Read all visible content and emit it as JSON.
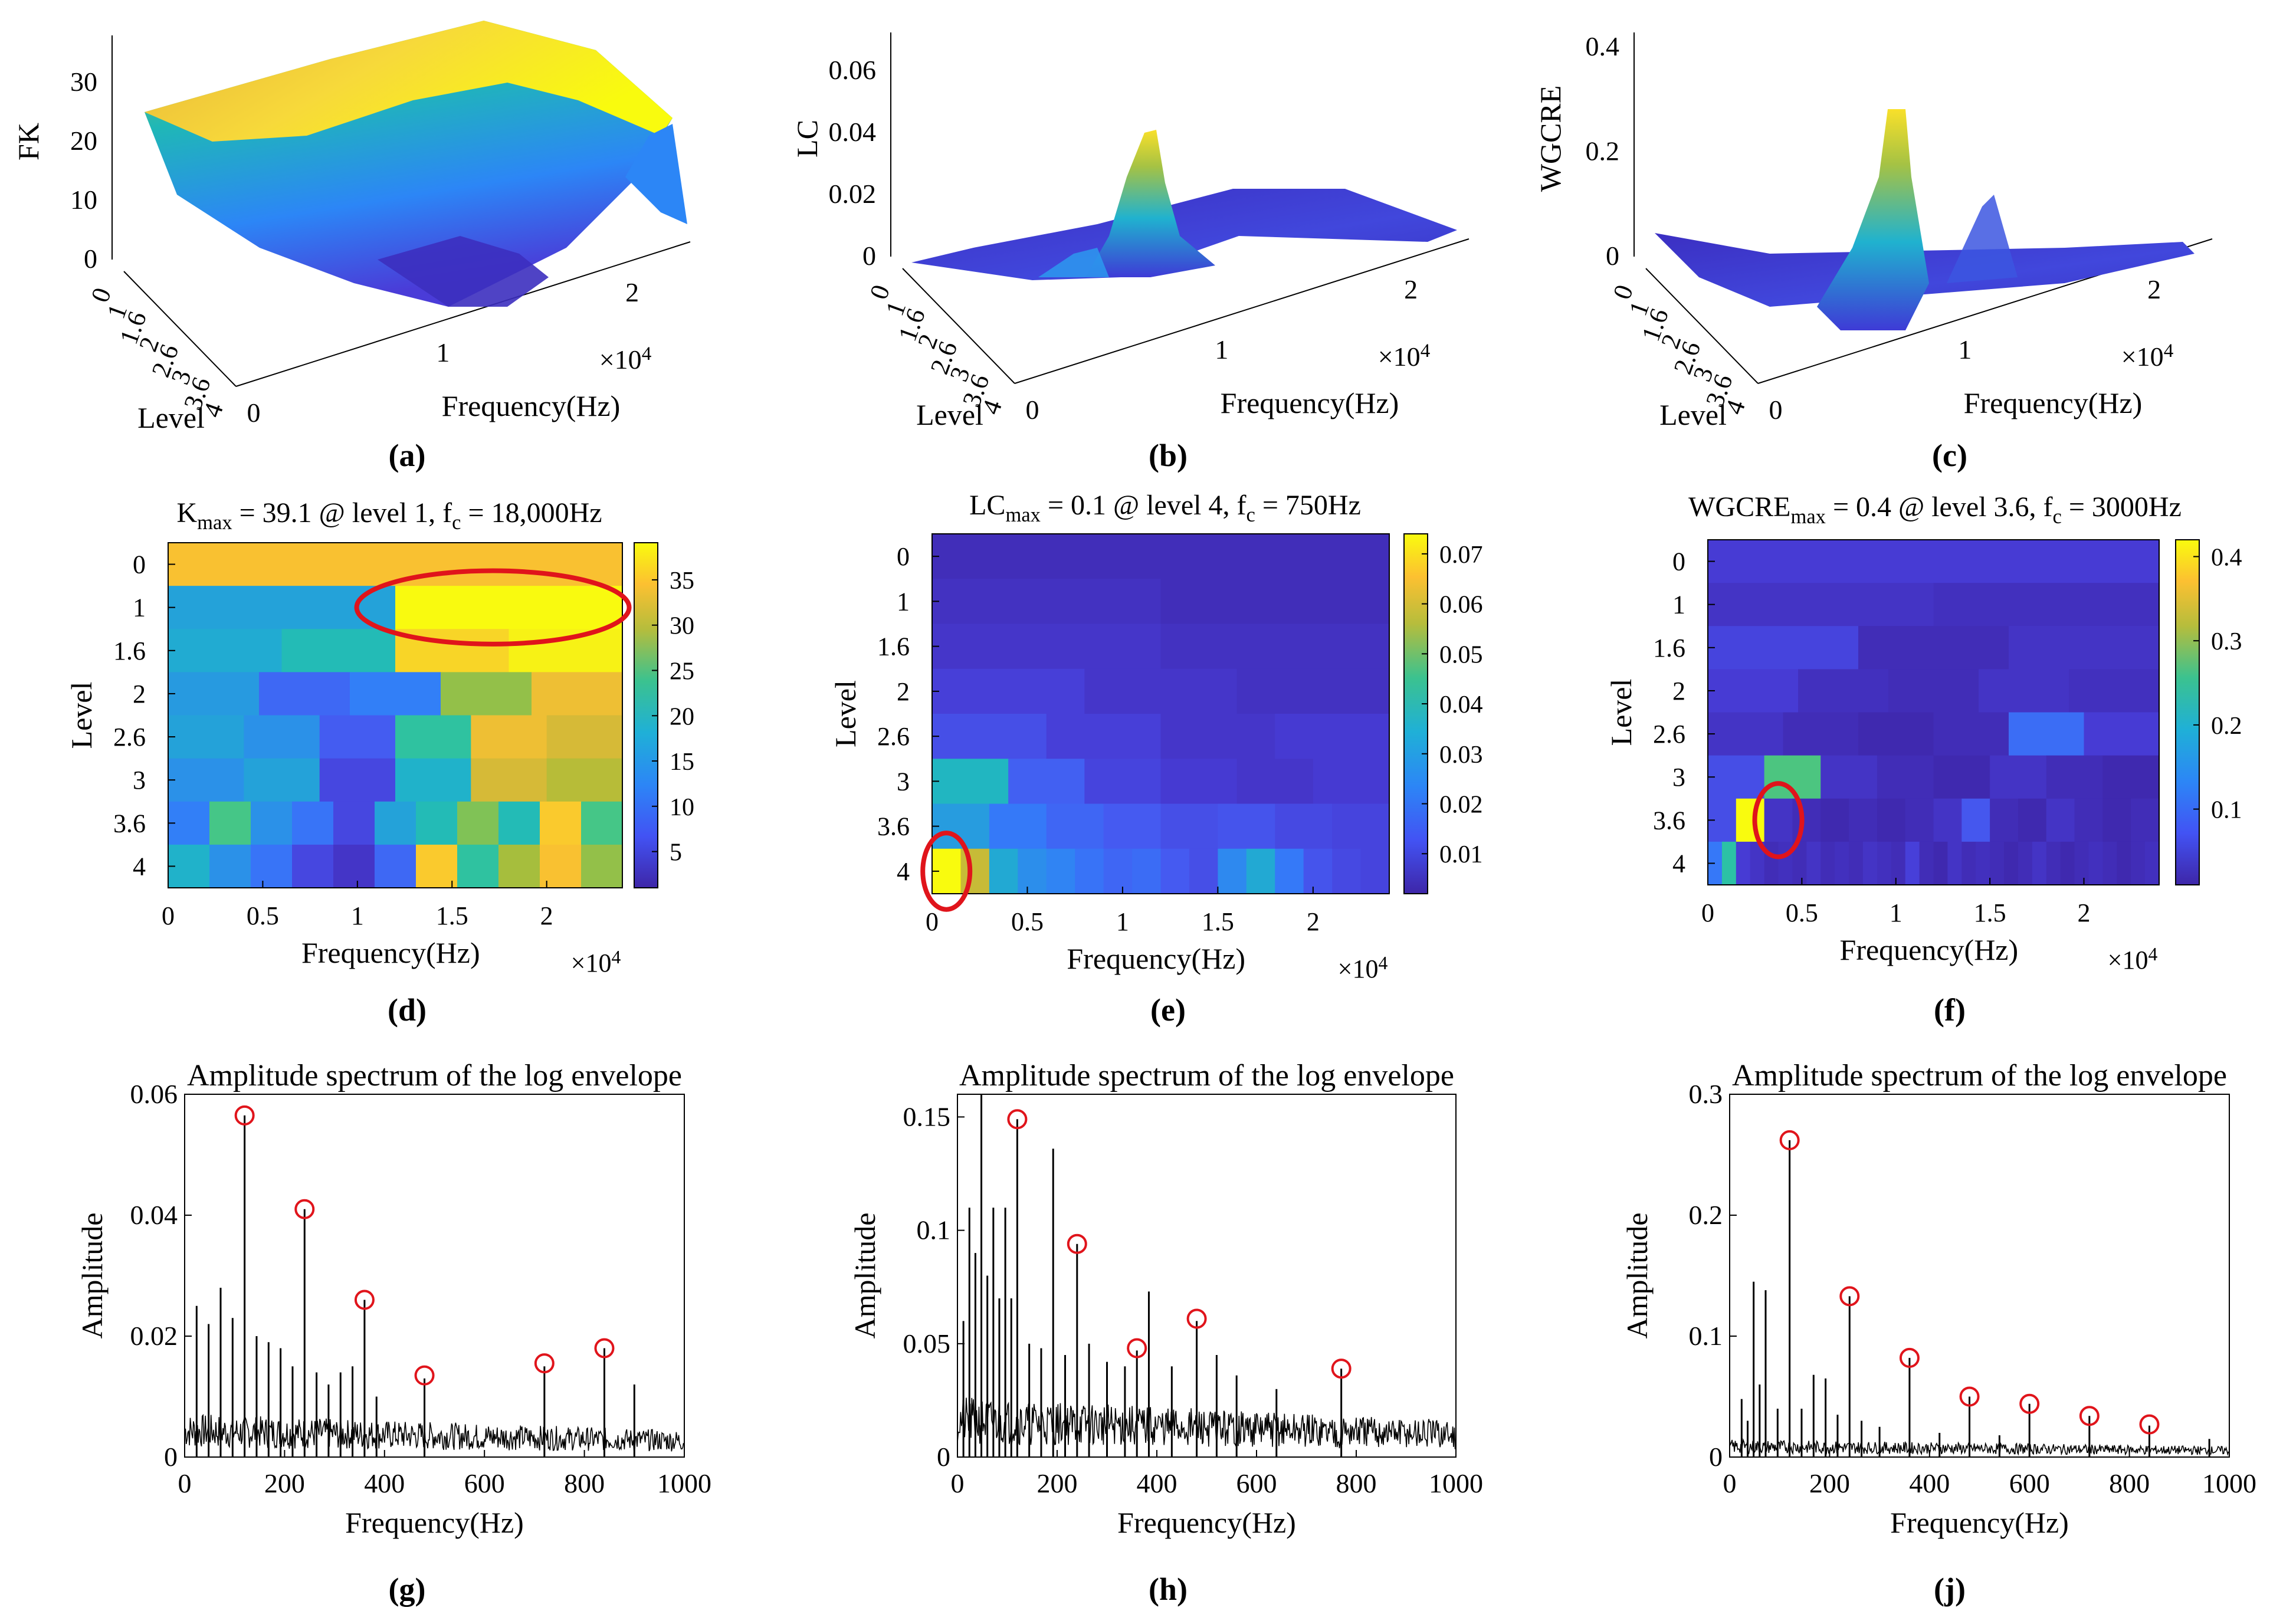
{
  "panel_labels": [
    "(a)",
    "(b)",
    "(c)",
    "(d)",
    "(e)",
    "(f)",
    "(g)",
    "(h)",
    "(j)"
  ],
  "common": {
    "level_label": "Level",
    "frequency_label": "Frequency(Hz)",
    "x10_4": "×10",
    "x10_exp": "4",
    "amplitude_label": "Amplitude"
  },
  "colors": {
    "parula_low": "#3e26a8",
    "parula_mid": "#1fb7b7",
    "parula_high": "#f9fb0e",
    "highlight_ring": "#e0141b",
    "spectrum_line": "#000000"
  },
  "chart_data": [
    {
      "id": "a",
      "type": "surface",
      "zlabel": "FK",
      "xlabel": "Level",
      "ylabel": "Frequency(Hz)",
      "level_ticks": [
        "0",
        "1",
        "1.6",
        "2",
        "2.6",
        "3",
        "3.6",
        "4"
      ],
      "freq_ticks": [
        "0",
        "1",
        "2"
      ],
      "z_ticks": [
        "0",
        "10",
        "20",
        "30"
      ],
      "zlim": [
        0,
        39.1
      ]
    },
    {
      "id": "b",
      "type": "surface",
      "zlabel": "LC",
      "xlabel": "Level",
      "ylabel": "Frequency(Hz)",
      "level_ticks": [
        "0",
        "1",
        "1.6",
        "2",
        "2.6",
        "3",
        "3.6",
        "4"
      ],
      "freq_ticks": [
        "0",
        "1",
        "2"
      ],
      "z_ticks": [
        "0",
        "0.02",
        "0.04",
        "0.06"
      ],
      "zlim": [
        0,
        0.07
      ]
    },
    {
      "id": "c",
      "type": "surface",
      "zlabel": "WGCRE",
      "xlabel": "Level",
      "ylabel": "Frequency(Hz)",
      "level_ticks": [
        "0",
        "1",
        "1.6",
        "2",
        "2.6",
        "3",
        "3.6",
        "4"
      ],
      "freq_ticks": [
        "0",
        "1",
        "2"
      ],
      "z_ticks": [
        "0",
        "0.2",
        "0.4"
      ],
      "zlim": [
        0,
        0.4
      ]
    },
    {
      "id": "d",
      "type": "heatmap",
      "title_main": "K",
      "title_sub": "max",
      "title_rest": " = 39.1 @ level 1, f",
      "title_sub2": "c",
      "title_end": " = 18,000Hz",
      "levels": [
        "0",
        "1",
        "1.6",
        "2",
        "2.6",
        "3",
        "3.6",
        "4"
      ],
      "xticks": [
        "0",
        "0.5",
        "1",
        "1.5",
        "2"
      ],
      "xlim": [
        0,
        24000
      ],
      "colorbar_ticks": [
        "5",
        "10",
        "15",
        "20",
        "25",
        "30",
        "35"
      ],
      "clim": [
        1,
        39.1
      ],
      "peak": {
        "level": "1",
        "fc": 18000
      },
      "rows": [
        [
          33
        ],
        [
          14,
          39
        ],
        [
          15,
          18,
          35,
          38
        ],
        [
          13,
          8,
          10,
          26,
          32
        ],
        [
          14,
          12,
          7,
          20,
          32,
          30
        ],
        [
          12,
          14,
          5,
          16,
          30,
          28
        ],
        [
          10,
          22,
          12,
          9,
          5,
          14,
          18,
          25,
          18,
          34,
          22
        ],
        [
          16,
          12,
          9,
          5,
          3,
          8,
          34,
          20,
          27,
          33,
          26
        ]
      ]
    },
    {
      "id": "e",
      "type": "heatmap",
      "title_main": "LC",
      "title_sub": "max",
      "title_rest": " = 0.1 @ level 4, f",
      "title_sub2": "c",
      "title_end": " = 750Hz",
      "levels": [
        "0",
        "1",
        "1.6",
        "2",
        "2.6",
        "3",
        "3.6",
        "4"
      ],
      "xticks": [
        "0",
        "0.5",
        "1",
        "1.5",
        "2"
      ],
      "xlim": [
        0,
        24000
      ],
      "colorbar_ticks": [
        "0.01",
        "0.02",
        "0.03",
        "0.04",
        "0.05",
        "0.06",
        "0.07"
      ],
      "clim": [
        0.002,
        0.074
      ],
      "peak": {
        "level": "4",
        "fc": 750
      },
      "rows": [
        [
          0.004
        ],
        [
          0.005,
          0.004
        ],
        [
          0.006,
          0.005
        ],
        [
          0.008,
          0.006,
          0.005
        ],
        [
          0.011,
          0.008,
          0.006,
          0.007
        ],
        [
          0.032,
          0.014,
          0.009,
          0.007,
          0.006,
          0.007
        ],
        [
          0.025,
          0.018,
          0.015,
          0.013,
          0.011,
          0.012,
          0.01,
          0.009
        ],
        [
          0.074,
          0.055,
          0.028,
          0.022,
          0.02,
          0.017,
          0.015,
          0.016,
          0.013,
          0.011,
          0.021,
          0.028,
          0.018,
          0.012,
          0.01,
          0.009
        ]
      ]
    },
    {
      "id": "f",
      "type": "heatmap",
      "title_main": "WGCRE",
      "title_sub": "max",
      "title_rest": " = 0.4 @ level 3.6, f",
      "title_sub2": "c",
      "title_end": " = 3000Hz",
      "levels": [
        "0",
        "1",
        "1.6",
        "2",
        "2.6",
        "3",
        "3.6",
        "4"
      ],
      "xticks": [
        "0",
        "0.5",
        "1",
        "1.5",
        "2"
      ],
      "xlim": [
        0,
        24000
      ],
      "colorbar_ticks": [
        "0.1",
        "0.2",
        "0.3",
        "0.4"
      ],
      "clim": [
        0.01,
        0.42
      ],
      "peak": {
        "level": "3.6",
        "fc": 3000
      },
      "rows": [
        [
          0.04
        ],
        [
          0.03,
          0.025
        ],
        [
          0.05,
          0.02,
          0.03
        ],
        [
          0.04,
          0.025,
          0.02,
          0.03,
          0.025
        ],
        [
          0.03,
          0.02,
          0.015,
          0.02,
          0.09,
          0.04
        ],
        [
          0.06,
          0.24,
          0.03,
          0.02,
          0.015,
          0.03,
          0.02,
          0.015
        ],
        [
          0.06,
          0.42,
          0.03,
          0.02,
          0.015,
          0.02,
          0.015,
          0.02,
          0.03,
          0.07,
          0.02,
          0.015,
          0.03,
          0.02,
          0.015,
          0.02
        ],
        [
          0.1,
          0.21,
          0.04,
          0.03,
          0.02,
          0.025,
          0.02,
          0.03,
          0.02,
          0.025,
          0.02,
          0.03,
          0.025,
          0.02,
          0.045,
          0.02,
          0.015,
          0.03,
          0.02,
          0.025,
          0.02,
          0.015,
          0.02,
          0.03,
          0.02,
          0.015,
          0.02,
          0.025,
          0.02,
          0.015,
          0.02,
          0.025
        ]
      ]
    },
    {
      "id": "g",
      "type": "line",
      "title": "Amplitude spectrum of the log envelope",
      "xlabel": "Frequency(Hz)",
      "ylabel": "Amplitude",
      "xlim": [
        0,
        1000
      ],
      "ylim": [
        0,
        0.06
      ],
      "xticks": [
        "0",
        "200",
        "400",
        "600",
        "800",
        "1000"
      ],
      "yticks": [
        "0",
        "0.02",
        "0.04",
        "0.06"
      ],
      "noise_level": 0.006,
      "spikes": [
        {
          "x": 24,
          "y": 0.025
        },
        {
          "x": 48,
          "y": 0.022
        },
        {
          "x": 72,
          "y": 0.028
        },
        {
          "x": 96,
          "y": 0.023
        },
        {
          "x": 120,
          "y": 0.0565
        },
        {
          "x": 144,
          "y": 0.02
        },
        {
          "x": 168,
          "y": 0.019
        },
        {
          "x": 192,
          "y": 0.018
        },
        {
          "x": 216,
          "y": 0.015
        },
        {
          "x": 240,
          "y": 0.041
        },
        {
          "x": 264,
          "y": 0.014
        },
        {
          "x": 288,
          "y": 0.012
        },
        {
          "x": 312,
          "y": 0.014
        },
        {
          "x": 336,
          "y": 0.015
        },
        {
          "x": 360,
          "y": 0.026
        },
        {
          "x": 384,
          "y": 0.01
        },
        {
          "x": 480,
          "y": 0.013
        },
        {
          "x": 720,
          "y": 0.015
        },
        {
          "x": 840,
          "y": 0.018
        },
        {
          "x": 900,
          "y": 0.012
        }
      ],
      "markers": [
        {
          "x": 120,
          "y": 0.0565
        },
        {
          "x": 240,
          "y": 0.041
        },
        {
          "x": 360,
          "y": 0.026
        },
        {
          "x": 480,
          "y": 0.0135
        },
        {
          "x": 720,
          "y": 0.0155
        },
        {
          "x": 840,
          "y": 0.018
        }
      ]
    },
    {
      "id": "h",
      "type": "line",
      "title": "Amplitude spectrum of the log envelope",
      "xlabel": "Frequency(Hz)",
      "ylabel": "Amplitude",
      "xlim": [
        0,
        1000
      ],
      "ylim": [
        0,
        0.16
      ],
      "xticks": [
        "0",
        "200",
        "400",
        "600",
        "800",
        "1000"
      ],
      "yticks": [
        "0",
        "0.05",
        "0.1",
        "0.15"
      ],
      "noise_level": 0.022,
      "spikes": [
        {
          "x": 12,
          "y": 0.06
        },
        {
          "x": 24,
          "y": 0.11
        },
        {
          "x": 36,
          "y": 0.09
        },
        {
          "x": 48,
          "y": 0.16
        },
        {
          "x": 60,
          "y": 0.08
        },
        {
          "x": 72,
          "y": 0.11
        },
        {
          "x": 84,
          "y": 0.07
        },
        {
          "x": 96,
          "y": 0.11
        },
        {
          "x": 108,
          "y": 0.07
        },
        {
          "x": 120,
          "y": 0.149
        },
        {
          "x": 144,
          "y": 0.05
        },
        {
          "x": 168,
          "y": 0.048
        },
        {
          "x": 192,
          "y": 0.136
        },
        {
          "x": 216,
          "y": 0.045
        },
        {
          "x": 240,
          "y": 0.094
        },
        {
          "x": 264,
          "y": 0.05
        },
        {
          "x": 300,
          "y": 0.042
        },
        {
          "x": 336,
          "y": 0.04
        },
        {
          "x": 360,
          "y": 0.047
        },
        {
          "x": 384,
          "y": 0.073
        },
        {
          "x": 430,
          "y": 0.04
        },
        {
          "x": 480,
          "y": 0.06
        },
        {
          "x": 520,
          "y": 0.045
        },
        {
          "x": 560,
          "y": 0.036
        },
        {
          "x": 640,
          "y": 0.03
        },
        {
          "x": 770,
          "y": 0.039
        }
      ],
      "markers": [
        {
          "x": 120,
          "y": 0.149
        },
        {
          "x": 240,
          "y": 0.094
        },
        {
          "x": 360,
          "y": 0.048
        },
        {
          "x": 480,
          "y": 0.061
        },
        {
          "x": 770,
          "y": 0.039
        }
      ]
    },
    {
      "id": "j",
      "type": "line",
      "title": "Amplitude spectrum of the log envelope",
      "xlabel": "Frequency(Hz)",
      "ylabel": "Amplitude",
      "xlim": [
        0,
        1000
      ],
      "ylim": [
        0,
        0.3
      ],
      "xticks": [
        "0",
        "200",
        "400",
        "600",
        "800",
        "1000"
      ],
      "yticks": [
        "0",
        "0.1",
        "0.2",
        "0.3"
      ],
      "noise_level": 0.012,
      "spikes": [
        {
          "x": 24,
          "y": 0.048
        },
        {
          "x": 36,
          "y": 0.03
        },
        {
          "x": 48,
          "y": 0.145
        },
        {
          "x": 60,
          "y": 0.06
        },
        {
          "x": 72,
          "y": 0.138
        },
        {
          "x": 96,
          "y": 0.04
        },
        {
          "x": 120,
          "y": 0.262
        },
        {
          "x": 144,
          "y": 0.04
        },
        {
          "x": 168,
          "y": 0.068
        },
        {
          "x": 192,
          "y": 0.065
        },
        {
          "x": 216,
          "y": 0.035
        },
        {
          "x": 240,
          "y": 0.133
        },
        {
          "x": 264,
          "y": 0.03
        },
        {
          "x": 300,
          "y": 0.025
        },
        {
          "x": 360,
          "y": 0.082
        },
        {
          "x": 420,
          "y": 0.02
        },
        {
          "x": 480,
          "y": 0.05
        },
        {
          "x": 540,
          "y": 0.018
        },
        {
          "x": 600,
          "y": 0.044
        },
        {
          "x": 720,
          "y": 0.034
        },
        {
          "x": 840,
          "y": 0.026
        },
        {
          "x": 960,
          "y": 0.015
        }
      ],
      "markers": [
        {
          "x": 120,
          "y": 0.262
        },
        {
          "x": 240,
          "y": 0.133
        },
        {
          "x": 360,
          "y": 0.082
        },
        {
          "x": 480,
          "y": 0.05
        },
        {
          "x": 600,
          "y": 0.044
        },
        {
          "x": 720,
          "y": 0.034
        },
        {
          "x": 840,
          "y": 0.027
        }
      ]
    }
  ]
}
